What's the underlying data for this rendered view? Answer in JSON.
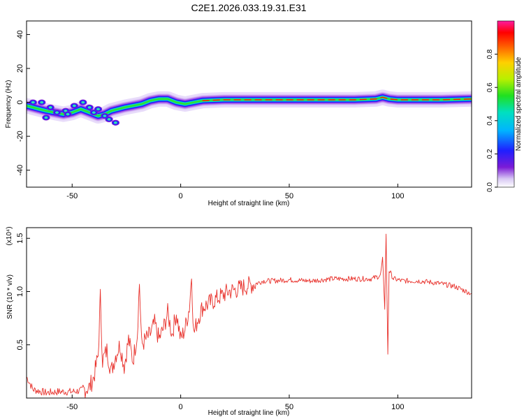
{
  "figure_title": "C2E1.2026.033.19.31.E31",
  "chart_data": [
    {
      "type": "heatmap",
      "title": "C2E1.2026.033.19.31.E31",
      "xlabel": "Height of straight line (km)",
      "ylabel": "Frequency (Hz)",
      "xlim": [
        -71,
        134
      ],
      "ylim": [
        -50,
        48
      ],
      "x_ticks": [
        -50,
        0,
        50,
        100
      ],
      "y_ticks": [
        -40,
        -20,
        0,
        20,
        40
      ],
      "x_tick_labels": [
        "-50",
        "0",
        "50",
        "100"
      ],
      "y_tick_labels": [
        "-40",
        "-20",
        "0",
        "20",
        "40"
      ],
      "colorbar": {
        "label": "Normalized spectral amplitude",
        "range": [
          0,
          1
        ],
        "ticks": [
          0.0,
          0.2,
          0.4,
          0.6,
          0.8
        ],
        "tick_labels": [
          "0.0",
          "0.2",
          "0.4",
          "0.6",
          "0.8"
        ]
      },
      "ridge": {
        "x": [
          -71,
          -68,
          -65,
          -62,
          -58,
          -54,
          -50,
          -46,
          -42,
          -38,
          -35,
          -32,
          -29,
          -26,
          -22,
          -18,
          -14,
          -10,
          -6,
          -2,
          2,
          6,
          10,
          20,
          40,
          60,
          80,
          90,
          93,
          96,
          100,
          120,
          134
        ],
        "y": [
          -2,
          -3,
          -4,
          -5,
          -6,
          -7,
          -6,
          -4,
          -6,
          -8,
          -7,
          -5,
          -4,
          -3,
          -2,
          -1,
          1,
          2,
          2,
          0,
          -1,
          0,
          1,
          1.5,
          1.5,
          1.5,
          1.5,
          2,
          3,
          2,
          1.5,
          1.5,
          2
        ]
      }
    },
    {
      "type": "line",
      "xlabel": "Height of straight line (km)",
      "ylabel": "SNR (10 * v/v)",
      "y_scale_label": "(x10⁴)",
      "xlim": [
        -71,
        134
      ],
      "ylim": [
        0,
        1.6
      ],
      "x_ticks": [
        -50,
        0,
        50,
        100
      ],
      "y_ticks": [
        0.5,
        1.0,
        1.5
      ],
      "x_tick_labels": [
        "-50",
        "0",
        "50",
        "100"
      ],
      "y_tick_labels": [
        "0.5",
        "1.0",
        "1.5"
      ],
      "series": [
        {
          "name": "SNR",
          "color": "#e8302a",
          "x": [
            -71,
            -68,
            -62,
            -56,
            -50,
            -46,
            -42,
            -40,
            -38,
            -37,
            -36,
            -34,
            -32,
            -30,
            -28,
            -26,
            -24,
            -22,
            -20,
            -19,
            -18,
            -16,
            -14,
            -12,
            -10,
            -8,
            -6,
            -4,
            -2,
            0,
            2,
            4,
            5,
            6,
            8,
            10,
            14,
            18,
            22,
            26,
            30,
            34,
            38,
            42,
            50,
            60,
            70,
            80,
            88,
            92,
            93,
            94,
            94.6,
            95.4,
            96,
            98,
            102,
            110,
            118,
            126,
            134
          ],
          "y": [
            0.2,
            0.08,
            0.05,
            0.06,
            0.06,
            0.07,
            0.1,
            0.2,
            0.4,
            0.95,
            0.35,
            0.45,
            0.25,
            0.4,
            0.5,
            0.3,
            0.55,
            0.35,
            0.6,
            1.08,
            0.5,
            0.55,
            0.6,
            0.7,
            0.55,
            0.65,
            0.8,
            0.6,
            0.8,
            0.55,
            0.65,
            0.85,
            1.15,
            0.6,
            0.75,
            0.85,
            0.9,
            0.95,
            1.0,
            1.02,
            1.05,
            1.07,
            1.1,
            1.1,
            1.11,
            1.1,
            1.12,
            1.12,
            1.12,
            1.15,
            1.3,
            0.85,
            1.55,
            0.42,
            1.2,
            1.12,
            1.1,
            1.1,
            1.08,
            1.05,
            0.98
          ]
        }
      ]
    }
  ]
}
